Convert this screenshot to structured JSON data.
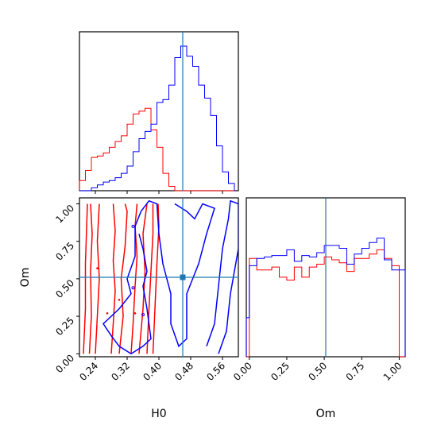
{
  "chart_data": {
    "type": "corner",
    "parameters": [
      "H0",
      "Om"
    ],
    "xlabel_h0": "H0",
    "xlabel_om": "Om",
    "ylabel_om": "Om",
    "truth": {
      "H0": 0.46,
      "Om": 0.51
    },
    "h0_ticks": [
      "0.24",
      "0.32",
      "0.40",
      "0.48",
      "0.56"
    ],
    "om_ticks": [
      "0.00",
      "0.25",
      "0.50",
      "0.75",
      "1.00"
    ],
    "h0_range": [
      0.2,
      0.6
    ],
    "om_range": [
      -0.02,
      1.04
    ],
    "series": [
      {
        "color": "#ff0000"
      },
      {
        "color": "#0000ff"
      }
    ],
    "hist_h0": {
      "bin_edges": [
        0.2,
        0.215,
        0.23,
        0.245,
        0.26,
        0.275,
        0.29,
        0.305,
        0.32,
        0.335,
        0.35,
        0.365,
        0.38,
        0.395,
        0.41,
        0.425,
        0.44,
        0.455,
        0.47,
        0.485,
        0.5,
        0.515,
        0.53,
        0.545,
        0.56,
        0.575,
        0.59
      ],
      "red": [
        0.07,
        0.14,
        0.23,
        0.24,
        0.26,
        0.3,
        0.34,
        0.38,
        0.46,
        0.53,
        0.55,
        0.57,
        0.42,
        0.3,
        0.12,
        0.03,
        0,
        0,
        0,
        0,
        0,
        0,
        0,
        0,
        0,
        0
      ],
      "blue": [
        0,
        0,
        0.02,
        0.04,
        0.06,
        0.07,
        0.09,
        0.12,
        0.17,
        0.27,
        0.36,
        0.41,
        0.46,
        0.61,
        0.63,
        0.73,
        0.92,
        1.0,
        0.93,
        0.86,
        0.73,
        0.64,
        0.52,
        0.31,
        0.13,
        0.05
      ]
    },
    "hist_om": {
      "bin_edges": [
        -0.02,
        0.0,
        0.05,
        0.1,
        0.15,
        0.2,
        0.25,
        0.3,
        0.35,
        0.4,
        0.45,
        0.5,
        0.55,
        0.6,
        0.65,
        0.7,
        0.75,
        0.8,
        0.85,
        0.9,
        0.95,
        1.0,
        1.04
      ],
      "red": [
        0,
        0.68,
        0.6,
        0.6,
        0.62,
        0.55,
        0.53,
        0.62,
        0.55,
        0.62,
        0.64,
        0.69,
        0.67,
        0.65,
        0.59,
        0.68,
        0.68,
        0.71,
        0.74,
        0.68,
        0.63,
        0
      ],
      "blue": [
        0.27,
        0.63,
        0.68,
        0.69,
        0.7,
        0.7,
        0.74,
        0.66,
        0.7,
        0.69,
        0.72,
        0.77,
        0.77,
        0.75,
        0.64,
        0.71,
        0.75,
        0.79,
        0.82,
        0.67,
        0.6,
        0.6
      ]
    },
    "contours_red": [
      [
        [
          0.21,
          0.0
        ],
        [
          0.215,
          0.3
        ],
        [
          0.215,
          0.6
        ],
        [
          0.22,
          1.0
        ]
      ],
      [
        [
          0.225,
          0.0
        ],
        [
          0.23,
          0.25
        ],
        [
          0.228,
          0.55
        ],
        [
          0.232,
          0.8
        ],
        [
          0.228,
          1.0
        ]
      ],
      [
        [
          0.24,
          0.0
        ],
        [
          0.245,
          0.25
        ],
        [
          0.25,
          0.5
        ],
        [
          0.245,
          0.75
        ],
        [
          0.25,
          1.0
        ]
      ],
      [
        [
          0.28,
          0.0
        ],
        [
          0.285,
          0.2
        ],
        [
          0.29,
          0.42
        ],
        [
          0.285,
          0.62
        ],
        [
          0.29,
          0.82
        ],
        [
          0.285,
          1.0
        ]
      ],
      [
        [
          0.3,
          0.0
        ],
        [
          0.31,
          0.25
        ],
        [
          0.305,
          0.5
        ],
        [
          0.315,
          0.72
        ],
        [
          0.32,
          0.95
        ],
        [
          0.315,
          1.0
        ]
      ],
      [
        [
          0.33,
          0.0
        ],
        [
          0.335,
          0.2
        ],
        [
          0.34,
          0.45
        ],
        [
          0.345,
          0.65
        ],
        [
          0.34,
          0.85
        ],
        [
          0.345,
          1.0
        ]
      ],
      [
        [
          0.35,
          0.0
        ],
        [
          0.36,
          0.3
        ],
        [
          0.365,
          0.55
        ],
        [
          0.36,
          0.8
        ],
        [
          0.37,
          1.0
        ]
      ],
      [
        [
          0.37,
          0.0
        ],
        [
          0.375,
          0.3
        ],
        [
          0.38,
          0.55
        ],
        [
          0.385,
          0.8
        ],
        [
          0.385,
          1.0
        ]
      ],
      [
        [
          0.385,
          0.0
        ],
        [
          0.39,
          0.3
        ],
        [
          0.395,
          0.6
        ],
        [
          0.4,
          0.85
        ],
        [
          0.398,
          1.0
        ]
      ]
    ],
    "contours_blue": [
      [
        [
          0.34,
          0.85
        ],
        [
          0.355,
          0.95
        ],
        [
          0.375,
          1.02
        ],
        [
          0.395,
          1.0
        ],
        [
          0.4,
          0.8
        ],
        [
          0.41,
          0.6
        ],
        [
          0.43,
          0.4
        ],
        [
          0.43,
          0.2
        ],
        [
          0.45,
          0.05
        ],
        [
          0.47,
          0.1
        ],
        [
          0.47,
          0.4
        ],
        [
          0.5,
          0.6
        ],
        [
          0.52,
          0.8
        ],
        [
          0.54,
          0.97
        ],
        [
          0.51,
          1.0
        ],
        [
          0.49,
          0.9
        ],
        [
          0.47,
          0.95
        ],
        [
          0.44,
          1.0
        ]
      ],
      [
        [
          0.34,
          0.85
        ],
        [
          0.34,
          0.65
        ],
        [
          0.32,
          0.5
        ],
        [
          0.33,
          0.4
        ],
        [
          0.3,
          0.3
        ],
        [
          0.26,
          0.2
        ],
        [
          0.28,
          0.12
        ],
        [
          0.3,
          0.05
        ],
        [
          0.33,
          0.0
        ],
        [
          0.36,
          0.05
        ],
        [
          0.38,
          0.1
        ],
        [
          0.37,
          0.3
        ],
        [
          0.36,
          0.45
        ],
        [
          0.37,
          0.55
        ],
        [
          0.36,
          0.7
        ],
        [
          0.35,
          0.8
        ]
      ],
      [
        [
          0.52,
          0.05
        ],
        [
          0.54,
          0.2
        ],
        [
          0.55,
          0.45
        ],
        [
          0.56,
          0.7
        ],
        [
          0.575,
          0.9
        ],
        [
          0.58,
          1.02
        ],
        [
          0.6,
          1.0
        ],
        [
          0.6,
          0.7
        ],
        [
          0.58,
          0.4
        ],
        [
          0.57,
          0.15
        ],
        [
          0.55,
          0.0
        ]
      ]
    ]
  }
}
